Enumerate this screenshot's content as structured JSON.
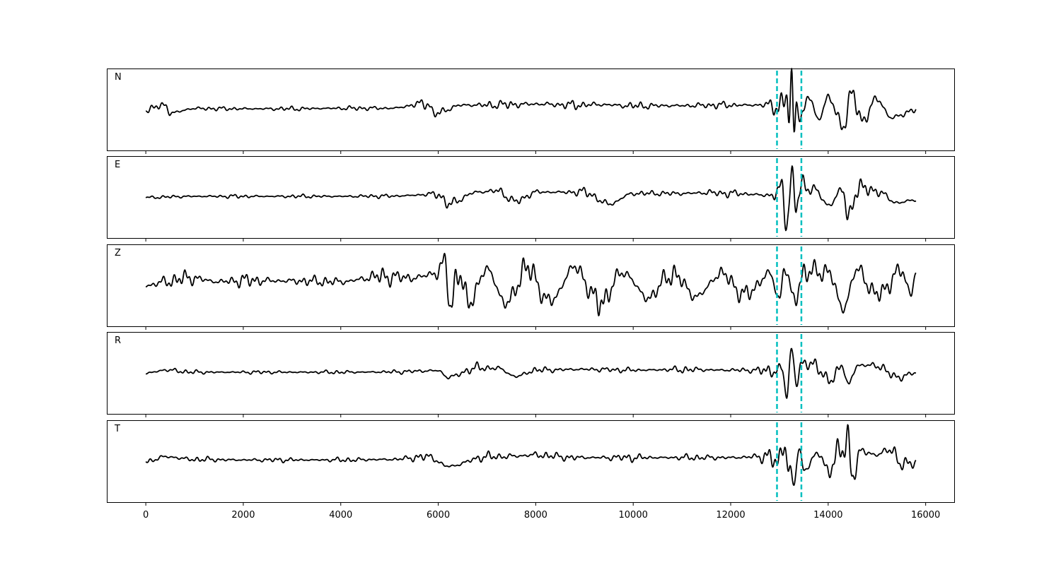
{
  "chart_data": {
    "type": "line",
    "xlim": [
      -800,
      16600
    ],
    "x_ticks": [
      0,
      2000,
      4000,
      6000,
      8000,
      10000,
      12000,
      14000,
      16000
    ],
    "x_tick_labels": [
      "0",
      "2000",
      "4000",
      "6000",
      "8000",
      "10000",
      "12000",
      "14000",
      "16000"
    ],
    "samples": 15800,
    "pick_lines": [
      12950,
      13450
    ],
    "pick_color": "#00bfbf",
    "trace_color": "#000000",
    "grid": false,
    "panels": [
      {
        "label": "N",
        "ylim": [
          -1.1,
          1.1
        ],
        "keypoints": [
          [
            0,
            0
          ],
          [
            400,
            0.18
          ],
          [
            500,
            -0.12
          ],
          [
            1000,
            0.05
          ],
          [
            2000,
            0.04
          ],
          [
            3000,
            0.04
          ],
          [
            4000,
            0.06
          ],
          [
            5000,
            0.06
          ],
          [
            5800,
            0.25
          ],
          [
            5900,
            -0.15
          ],
          [
            6500,
            0.18
          ],
          [
            7000,
            0.18
          ],
          [
            7500,
            0.2
          ],
          [
            8000,
            0.22
          ],
          [
            8800,
            0.18
          ],
          [
            9300,
            0.2
          ],
          [
            10000,
            0.15
          ],
          [
            11000,
            0.16
          ],
          [
            12000,
            0.18
          ],
          [
            12800,
            0.18
          ],
          [
            13000,
            0.12
          ],
          [
            13150,
            0.5
          ],
          [
            13200,
            -0.35
          ],
          [
            13250,
            0.95
          ],
          [
            13300,
            -0.7
          ],
          [
            13350,
            0.4
          ],
          [
            13450,
            -0.3
          ],
          [
            13600,
            0.5
          ],
          [
            13800,
            -0.35
          ],
          [
            14000,
            0.45
          ],
          [
            14300,
            -0.55
          ],
          [
            14500,
            0.55
          ],
          [
            14700,
            -0.4
          ],
          [
            15000,
            0.4
          ],
          [
            15300,
            -0.3
          ],
          [
            15800,
            0
          ]
        ],
        "noise": 0.12
      },
      {
        "label": "E",
        "ylim": [
          -1.1,
          1.1
        ],
        "keypoints": [
          [
            0,
            0
          ],
          [
            1000,
            0.04
          ],
          [
            2000,
            0.04
          ],
          [
            3000,
            0.04
          ],
          [
            4000,
            0.04
          ],
          [
            5000,
            0.05
          ],
          [
            6000,
            0.12
          ],
          [
            6200,
            -0.25
          ],
          [
            6800,
            0.2
          ],
          [
            7200,
            0.25
          ],
          [
            7600,
            -0.15
          ],
          [
            8000,
            0.2
          ],
          [
            9000,
            0.2
          ],
          [
            9500,
            -0.25
          ],
          [
            10000,
            0.15
          ],
          [
            11000,
            0.15
          ],
          [
            11500,
            0.18
          ],
          [
            12000,
            0.15
          ],
          [
            12900,
            0.08
          ],
          [
            13050,
            0.35
          ],
          [
            13150,
            -0.9
          ],
          [
            13250,
            0.8
          ],
          [
            13350,
            -0.3
          ],
          [
            13450,
            0.4
          ],
          [
            13700,
            0.35
          ],
          [
            14000,
            -0.3
          ],
          [
            14300,
            0.3
          ],
          [
            14400,
            -0.8
          ],
          [
            14600,
            0.35
          ],
          [
            15000,
            0.25
          ],
          [
            15400,
            -0.2
          ],
          [
            15800,
            -0.1
          ]
        ],
        "noise": 0.1
      },
      {
        "label": "Z",
        "ylim": [
          -1.1,
          1.1
        ],
        "keypoints": [
          [
            0,
            0
          ],
          [
            500,
            0.18
          ],
          [
            900,
            0.3
          ],
          [
            1500,
            0.15
          ],
          [
            2000,
            0.2
          ],
          [
            3000,
            0.18
          ],
          [
            4000,
            0.15
          ],
          [
            4800,
            0.35
          ],
          [
            5500,
            0.3
          ],
          [
            6000,
            0.5
          ],
          [
            6150,
            0.85
          ],
          [
            6250,
            -0.85
          ],
          [
            6400,
            0.6
          ],
          [
            6600,
            -0.65
          ],
          [
            7000,
            0.6
          ],
          [
            7400,
            -0.7
          ],
          [
            7800,
            0.65
          ],
          [
            8300,
            -0.6
          ],
          [
            8800,
            0.7
          ],
          [
            9300,
            -0.65
          ],
          [
            9800,
            0.5
          ],
          [
            10300,
            -0.45
          ],
          [
            10800,
            0.45
          ],
          [
            11300,
            -0.4
          ],
          [
            11800,
            0.45
          ],
          [
            12300,
            -0.35
          ],
          [
            12800,
            0.45
          ],
          [
            13000,
            -0.5
          ],
          [
            13100,
            0.7
          ],
          [
            13300,
            -0.55
          ],
          [
            13500,
            0.5
          ],
          [
            14000,
            0.55
          ],
          [
            14300,
            -0.85
          ],
          [
            14600,
            0.6
          ],
          [
            15000,
            -0.35
          ],
          [
            15500,
            0.55
          ],
          [
            15700,
            -0.3
          ],
          [
            15800,
            0.55
          ]
        ],
        "noise": 0.28
      },
      {
        "label": "R",
        "ylim": [
          -1.1,
          1.1
        ],
        "keypoints": [
          [
            0,
            0
          ],
          [
            400,
            0.12
          ],
          [
            1000,
            0.04
          ],
          [
            2000,
            0.04
          ],
          [
            3000,
            0.04
          ],
          [
            4000,
            0.04
          ],
          [
            5000,
            0.05
          ],
          [
            6000,
            0.1
          ],
          [
            6200,
            -0.15
          ],
          [
            6800,
            0.2
          ],
          [
            7200,
            0.2
          ],
          [
            7600,
            -0.12
          ],
          [
            8000,
            0.12
          ],
          [
            9000,
            0.15
          ],
          [
            10000,
            0.12
          ],
          [
            11000,
            0.14
          ],
          [
            12000,
            0.12
          ],
          [
            12900,
            0.1
          ],
          [
            13050,
            0.15
          ],
          [
            13150,
            -0.85
          ],
          [
            13250,
            0.95
          ],
          [
            13350,
            -0.35
          ],
          [
            13450,
            0.3
          ],
          [
            13700,
            0.4
          ],
          [
            14000,
            -0.3
          ],
          [
            14300,
            0.3
          ],
          [
            14400,
            -0.5
          ],
          [
            14600,
            0.3
          ],
          [
            15000,
            0.3
          ],
          [
            15400,
            -0.15
          ],
          [
            15800,
            0
          ]
        ],
        "noise": 0.1
      },
      {
        "label": "T",
        "ylim": [
          -1.1,
          1.1
        ],
        "keypoints": [
          [
            0,
            0
          ],
          [
            400,
            0.18
          ],
          [
            1000,
            0.08
          ],
          [
            2000,
            0.06
          ],
          [
            3000,
            0.06
          ],
          [
            4000,
            0.06
          ],
          [
            5000,
            0.08
          ],
          [
            5800,
            0.18
          ],
          [
            6200,
            -0.18
          ],
          [
            7000,
            0.18
          ],
          [
            7500,
            0.2
          ],
          [
            8000,
            0.25
          ],
          [
            8800,
            0.15
          ],
          [
            9500,
            0.15
          ],
          [
            10000,
            0.15
          ],
          [
            11000,
            0.15
          ],
          [
            12000,
            0.15
          ],
          [
            12800,
            0.2
          ],
          [
            12950,
            -0.15
          ],
          [
            13100,
            0.75
          ],
          [
            13200,
            -0.4
          ],
          [
            13300,
            -0.85
          ],
          [
            13400,
            0.5
          ],
          [
            13500,
            -0.3
          ],
          [
            13800,
            0.3
          ],
          [
            14000,
            -0.3
          ],
          [
            14300,
            0.45
          ],
          [
            14400,
            0.95
          ],
          [
            14500,
            -0.5
          ],
          [
            14700,
            0.4
          ],
          [
            15000,
            0.25
          ],
          [
            15300,
            0.5
          ],
          [
            15500,
            -0.15
          ],
          [
            15800,
            0
          ]
        ],
        "noise": 0.12
      }
    ]
  }
}
